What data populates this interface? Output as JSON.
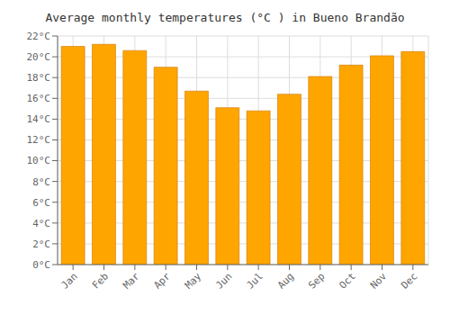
{
  "chart_data": {
    "type": "bar",
    "title": "Average monthly temperatures (°C ) in Bueno Brandão",
    "categories": [
      "Jan",
      "Feb",
      "Mar",
      "Apr",
      "May",
      "Jun",
      "Jul",
      "Aug",
      "Sep",
      "Oct",
      "Nov",
      "Dec"
    ],
    "values": [
      21.0,
      21.2,
      20.6,
      19.0,
      16.7,
      15.1,
      14.8,
      16.4,
      18.1,
      19.2,
      20.1,
      20.5
    ],
    "color": "#FFA500",
    "ylim": [
      0,
      22
    ],
    "yticks": [
      {
        "value": 0,
        "label": "0°C"
      },
      {
        "value": 2,
        "label": "2°C"
      },
      {
        "value": 4,
        "label": "4°C"
      },
      {
        "value": 6,
        "label": "6°C"
      },
      {
        "value": 8,
        "label": "8°C"
      },
      {
        "value": 10,
        "label": "10°C"
      },
      {
        "value": 12,
        "label": "12°C"
      },
      {
        "value": 14,
        "label": "14°C"
      },
      {
        "value": 16,
        "label": "16°C"
      },
      {
        "value": 18,
        "label": "18°C"
      },
      {
        "value": 20,
        "label": "20°C"
      },
      {
        "value": 22,
        "label": "22°C"
      }
    ],
    "grid": true
  }
}
